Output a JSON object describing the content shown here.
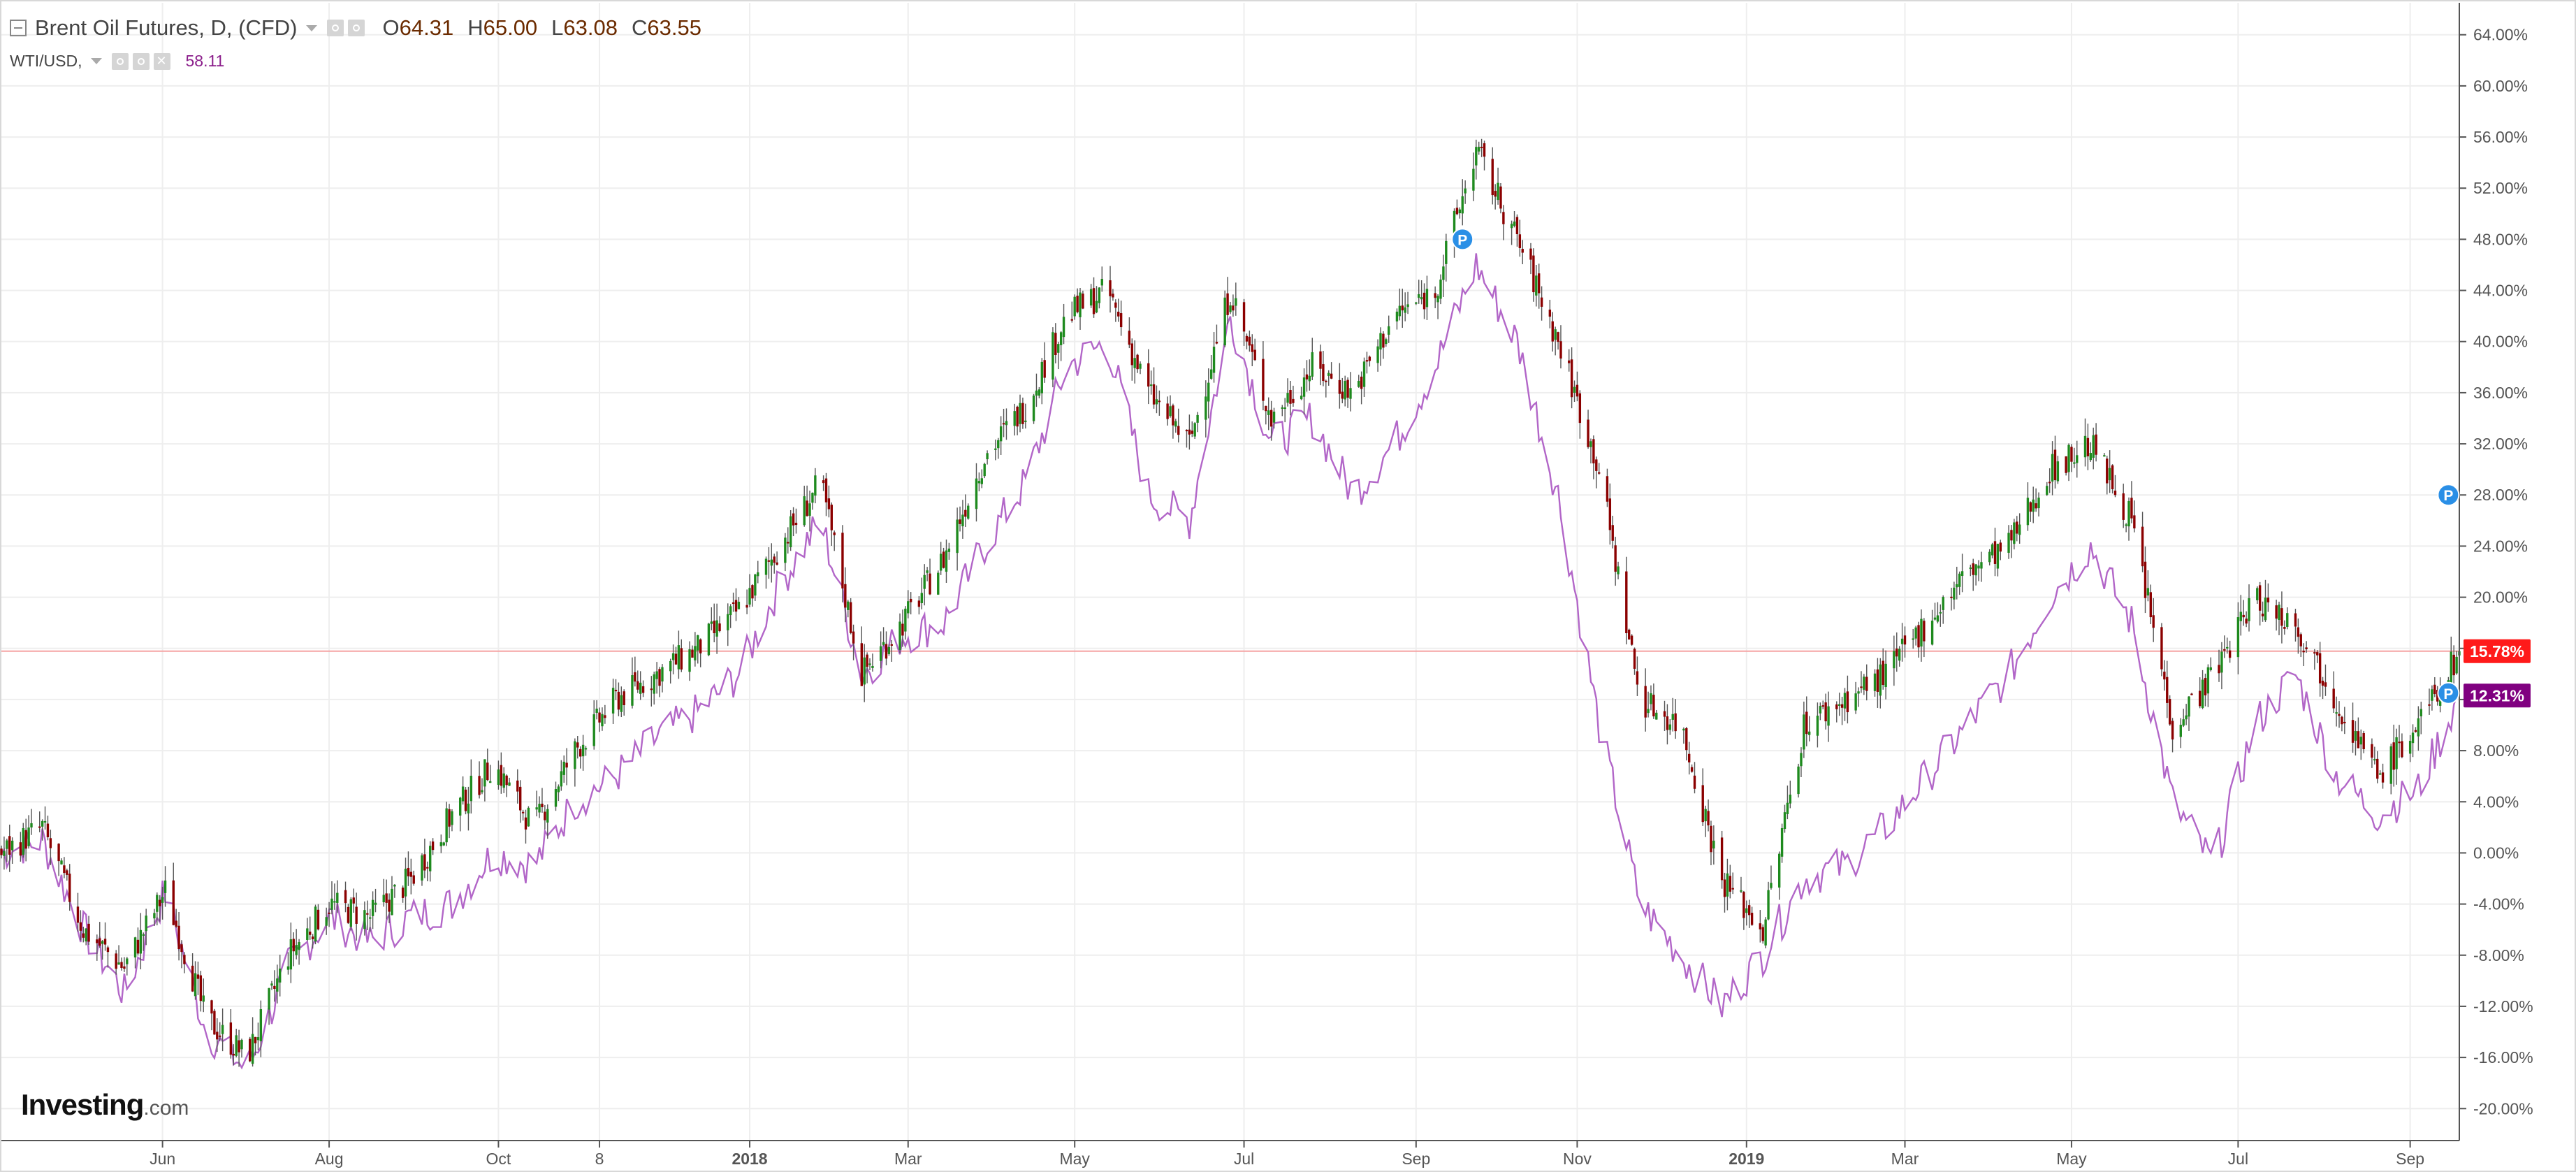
{
  "legend": {
    "instrument": "Brent Oil Futures, D, (CFD)",
    "ohlc": [
      {
        "k": "O",
        "v": "64.31"
      },
      {
        "k": "H",
        "v": "65.00"
      },
      {
        "k": "L",
        "v": "63.08"
      },
      {
        "k": "C",
        "v": "63.55"
      }
    ],
    "compare_symbol": "WTI/USD,",
    "compare_value": "58.11"
  },
  "logo": {
    "brand": "Investing",
    "suffix": ".com"
  },
  "colors": {
    "up": "#1e8a1e",
    "down": "#8b0000",
    "wick": "#555555",
    "wti": "#b266c8",
    "brent_badge": "#ff1a1a",
    "wti_badge": "#800080",
    "marker": "#2a8fe6",
    "grid": "#eeeeee",
    "hline": "#f5a3a3"
  },
  "chart_data": {
    "type": "line",
    "chart_style": "candlestick with comparison line",
    "y_axis": {
      "ticks": [
        64,
        60,
        56,
        52,
        48,
        44,
        40,
        36,
        32,
        28,
        24,
        20,
        16,
        12,
        8,
        4,
        0,
        -4,
        -8,
        -12,
        -16,
        -20
      ],
      "tick_labels": [
        "64.00%",
        "60.00%",
        "56.00%",
        "52.00%",
        "48.00%",
        "44.00%",
        "40.00%",
        "36.00%",
        "32.00%",
        "28.00%",
        "24.00%",
        "20.00%",
        "16.00%",
        "12.00%",
        "8.00%",
        "4.00%",
        "0.00%",
        "-4.00%",
        "-8.00%",
        "-12.00%",
        "-16.00%",
        "-20.00%"
      ],
      "ylim": [
        -22.5,
        66.5
      ],
      "side": "right"
    },
    "x_axis": {
      "type": "date",
      "range": [
        "2017-04-03",
        "2019-09-20"
      ],
      "ticks": [
        {
          "date": "2017-06-01",
          "label": "Jun",
          "bold": false
        },
        {
          "date": "2017-08-01",
          "label": "Aug",
          "bold": false
        },
        {
          "date": "2017-10-02",
          "label": "Oct",
          "bold": false
        },
        {
          "date": "2017-11-08",
          "label": "8",
          "bold": false
        },
        {
          "date": "2018-01-02",
          "label": "2018",
          "bold": true
        },
        {
          "date": "2018-03-01",
          "label": "Mar",
          "bold": false
        },
        {
          "date": "2018-05-01",
          "label": "May",
          "bold": false
        },
        {
          "date": "2018-07-02",
          "label": "Jul",
          "bold": false
        },
        {
          "date": "2018-09-03",
          "label": "Sep",
          "bold": false
        },
        {
          "date": "2018-11-01",
          "label": "Nov",
          "bold": false
        },
        {
          "date": "2019-01-02",
          "label": "2019",
          "bold": true
        },
        {
          "date": "2019-03-01",
          "label": "Mar",
          "bold": false
        },
        {
          "date": "2019-05-01",
          "label": "May",
          "bold": false
        },
        {
          "date": "2019-07-01",
          "label": "Jul",
          "bold": false
        },
        {
          "date": "2019-09-02",
          "label": "Sep",
          "bold": false
        }
      ]
    },
    "current_level_line": 15.78,
    "badges": [
      {
        "series": "Brent Oil Futures",
        "value": 15.78,
        "label": "15.78%"
      },
      {
        "series": "WTI/USD",
        "value": 12.31,
        "label": "12.31%"
      }
    ],
    "markers": [
      {
        "date": "2018-09-20",
        "value": 48,
        "label": "P"
      },
      {
        "date": "2019-09-16",
        "value": 28,
        "label": "P"
      },
      {
        "date": "2019-09-16",
        "value": 12.5,
        "label": "P"
      }
    ],
    "series": [
      {
        "name": "Brent Oil Futures",
        "style": "candlestick",
        "x": [
          "2017-04-03",
          "2017-04-18",
          "2017-05-03",
          "2017-05-18",
          "2017-06-02",
          "2017-06-17",
          "2017-07-02",
          "2017-07-17",
          "2017-08-01",
          "2017-08-16",
          "2017-08-31",
          "2017-09-15",
          "2017-09-30",
          "2017-10-15",
          "2017-10-30",
          "2017-11-14",
          "2017-11-29",
          "2017-12-14",
          "2017-12-29",
          "2018-01-13",
          "2018-01-28",
          "2018-02-12",
          "2018-02-27",
          "2018-03-14",
          "2018-03-29",
          "2018-04-13",
          "2018-04-28",
          "2018-05-13",
          "2018-05-28",
          "2018-06-12",
          "2018-06-27",
          "2018-07-12",
          "2018-07-27",
          "2018-08-11",
          "2018-08-26",
          "2018-09-10",
          "2018-09-25",
          "2018-10-10",
          "2018-10-25",
          "2018-11-09",
          "2018-11-24",
          "2018-12-09",
          "2018-12-24",
          "2019-01-08",
          "2019-01-23",
          "2019-02-07",
          "2019-02-22",
          "2019-03-09",
          "2019-03-24",
          "2019-04-08",
          "2019-04-23",
          "2019-05-08",
          "2019-05-23",
          "2019-06-07",
          "2019-06-22",
          "2019-07-07",
          "2019-07-22",
          "2019-08-06",
          "2019-08-21",
          "2019-09-05",
          "2019-09-20"
        ],
        "values": [
          0,
          2,
          -6,
          -9,
          -3,
          -13,
          -16,
          -8,
          -4,
          -5,
          -2,
          3,
          7,
          2,
          8,
          12,
          14,
          16,
          19,
          24,
          29,
          14,
          18,
          23,
          31,
          35,
          42,
          44,
          36,
          32,
          44,
          34,
          38,
          36,
          42,
          44,
          55,
          48,
          40,
          30,
          12,
          10,
          -2,
          -6,
          10,
          12,
          14,
          18,
          22,
          24,
          30,
          32,
          26,
          10,
          14,
          20,
          18,
          12,
          6,
          10,
          15.78
        ]
      },
      {
        "name": "WTI/USD",
        "style": "line",
        "x": [
          "2017-04-03",
          "2017-04-18",
          "2017-05-03",
          "2017-05-18",
          "2017-06-02",
          "2017-06-17",
          "2017-07-02",
          "2017-07-17",
          "2017-08-01",
          "2017-08-16",
          "2017-08-31",
          "2017-09-15",
          "2017-09-30",
          "2017-10-15",
          "2017-10-30",
          "2017-11-14",
          "2017-11-29",
          "2017-12-14",
          "2017-12-29",
          "2018-01-13",
          "2018-01-28",
          "2018-02-12",
          "2018-02-27",
          "2018-03-14",
          "2018-03-29",
          "2018-04-13",
          "2018-04-28",
          "2018-05-13",
          "2018-05-28",
          "2018-06-12",
          "2018-06-27",
          "2018-07-12",
          "2018-07-27",
          "2018-08-11",
          "2018-08-26",
          "2018-09-10",
          "2018-09-25",
          "2018-10-10",
          "2018-10-25",
          "2018-11-09",
          "2018-11-24",
          "2018-12-09",
          "2018-12-24",
          "2019-01-08",
          "2019-01-23",
          "2019-02-07",
          "2019-02-22",
          "2019-03-09",
          "2019-03-24",
          "2019-04-08",
          "2019-04-23",
          "2019-05-08",
          "2019-05-23",
          "2019-06-07",
          "2019-06-22",
          "2019-07-07",
          "2019-07-22",
          "2019-08-06",
          "2019-08-21",
          "2019-09-05",
          "2019-09-20"
        ],
        "values": [
          0,
          1,
          -6,
          -11,
          -3,
          -14,
          -17,
          -9,
          -5,
          -7,
          -5,
          -4,
          0,
          -1,
          4,
          6,
          9,
          11,
          14,
          21,
          26,
          14,
          17,
          18,
          24,
          29,
          38,
          40,
          28,
          26,
          42,
          32,
          34,
          28,
          32,
          38,
          46,
          40,
          28,
          10,
          -4,
          -8,
          -12,
          -8,
          -2,
          -1,
          2,
          6,
          10,
          14,
          20,
          24,
          18,
          4,
          -1,
          10,
          14,
          6,
          3,
          5,
          12.31
        ]
      }
    ]
  }
}
